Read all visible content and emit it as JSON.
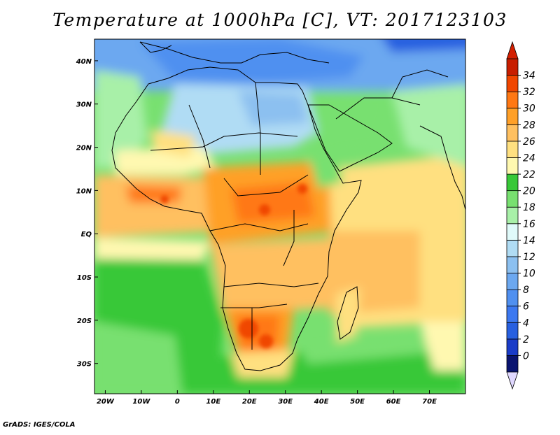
{
  "title": "Temperature at 1000hPa [C], VT: 2017123103",
  "footer": "GrADS: IGES/COLA",
  "map": {
    "lon_range": [
      -23,
      80
    ],
    "lat_range": [
      -37,
      45
    ],
    "lon_ticks": [
      "20W",
      "10W",
      "0",
      "10E",
      "20E",
      "30E",
      "40E",
      "50E",
      "60E",
      "70E"
    ],
    "lon_tick_values": [
      -20,
      -10,
      0,
      10,
      20,
      30,
      40,
      50,
      60,
      70
    ],
    "lat_ticks": [
      "40N",
      "30N",
      "20N",
      "10N",
      "EQ",
      "10S",
      "20S",
      "30S"
    ],
    "lat_tick_values": [
      40,
      30,
      20,
      10,
      0,
      -10,
      -20,
      -30
    ]
  },
  "colorbar": {
    "labels": [
      "0",
      "2",
      "4",
      "6",
      "8",
      "10",
      "12",
      "14",
      "16",
      "18",
      "20",
      "22",
      "24",
      "26",
      "28",
      "30",
      "32",
      "34"
    ],
    "colors": [
      "#0a1470",
      "#1a3cc8",
      "#2860e0",
      "#3c78f0",
      "#5090f0",
      "#6ca8f0",
      "#8cc0f0",
      "#b0dcf4",
      "#e0fafa",
      "#a8f0a8",
      "#78e070",
      "#38c838",
      "#fff8b0",
      "#ffe080",
      "#ffc060",
      "#ffa028",
      "#ff7814",
      "#f04600",
      "#c81e00"
    ],
    "under_color": "#e0d8ff",
    "over_color": "#d21e00"
  }
}
